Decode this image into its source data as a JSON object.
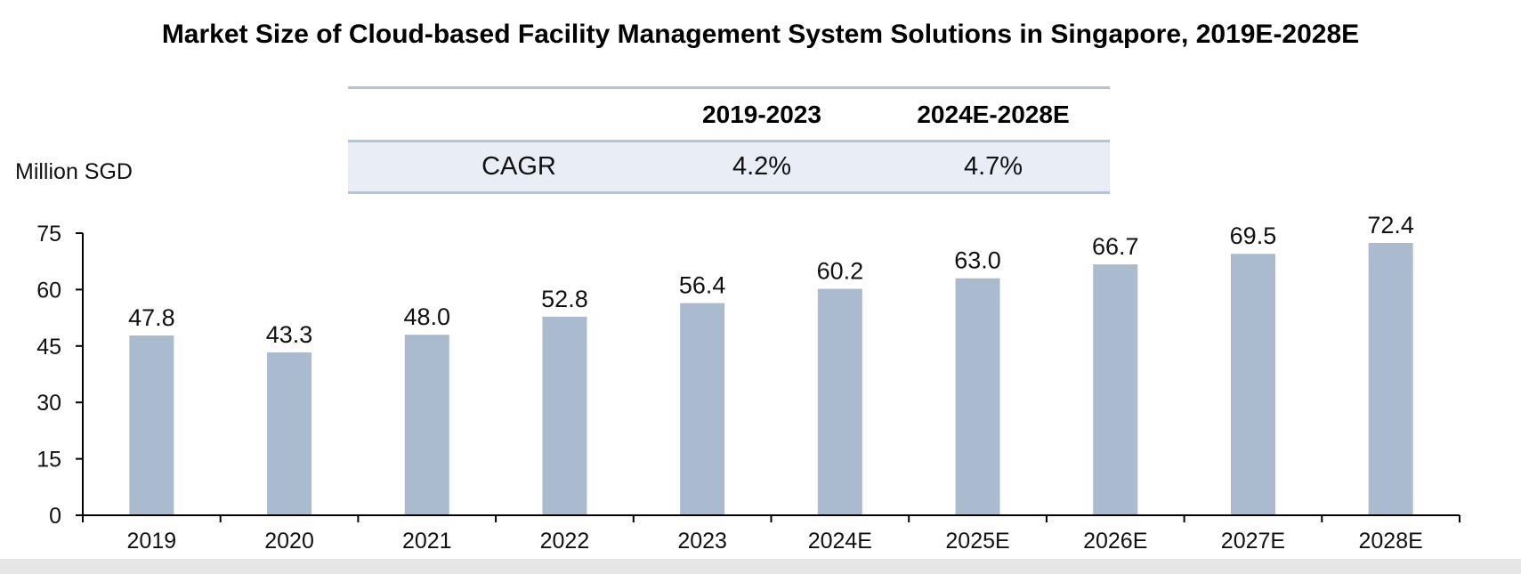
{
  "chart_data": {
    "type": "bar",
    "title": "Market Size of Cloud-based Facility Management System Solutions in Singapore, 2019E-2028E",
    "ylabel": "Million SGD",
    "xlabel": "",
    "categories": [
      "2019",
      "2020",
      "2021",
      "2022",
      "2023",
      "2024E",
      "2025E",
      "2026E",
      "2027E",
      "2028E"
    ],
    "values": [
      47.8,
      43.3,
      48.0,
      52.8,
      56.4,
      60.2,
      63.0,
      66.7,
      69.5,
      72.4
    ],
    "value_labels": [
      "47.8",
      "43.3",
      "48.0",
      "52.8",
      "56.4",
      "60.2",
      "63.0",
      "66.7",
      "69.5",
      "72.4"
    ],
    "ylim": [
      0,
      75
    ],
    "yticks": [
      "0",
      "15",
      "30",
      "45",
      "60",
      "75"
    ],
    "grid": false,
    "bar_color": "#aabbd0",
    "cagr_table": {
      "columns": [
        "",
        "2019-2023",
        "2024E-2028E"
      ],
      "row": {
        "label": "CAGR",
        "values": [
          "4.2%",
          "4.7%"
        ]
      }
    }
  }
}
